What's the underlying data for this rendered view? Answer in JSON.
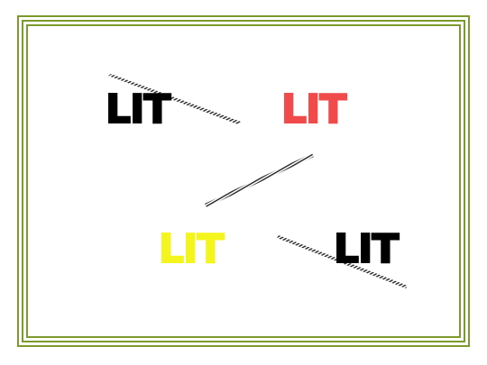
{
  "labels": [
    {
      "text": "LIT",
      "color": "#000000"
    },
    {
      "text": "LIT",
      "color": "#f04a4a"
    },
    {
      "text": "LIT",
      "color": "#f5f51e"
    },
    {
      "text": "LIT",
      "color": "#000000"
    }
  ],
  "frame_color": "#7d9a2c",
  "hatch_color": "#222222"
}
